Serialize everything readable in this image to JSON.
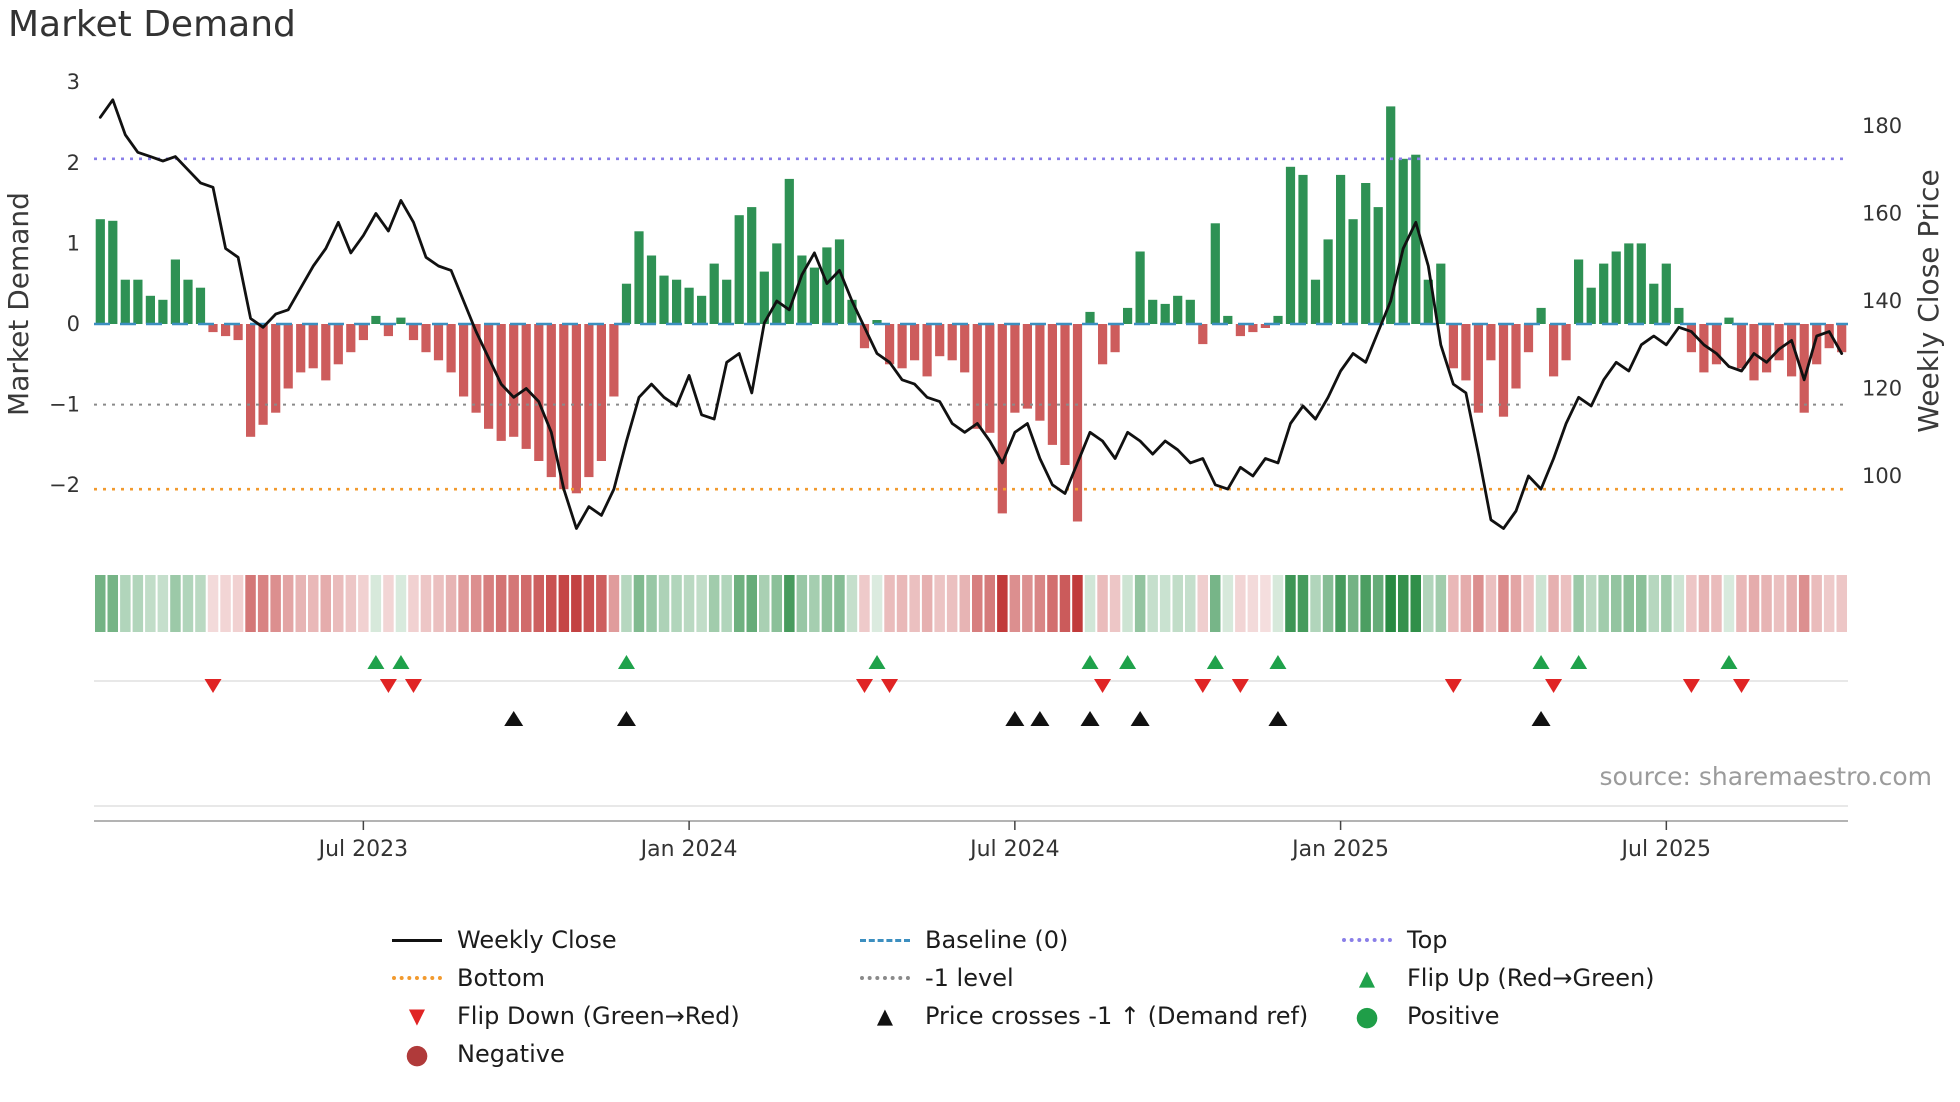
{
  "title": "Market Demand",
  "source": "source: sharemaestro.com",
  "axes": {
    "left_label": "Market Demand",
    "right_label": "Weekly Close Price",
    "left_ticks": [
      {
        "label": "3",
        "value": 3
      },
      {
        "label": "2",
        "value": 2
      },
      {
        "label": "1",
        "value": 1
      },
      {
        "label": "0",
        "value": 0
      },
      {
        "label": "−1",
        "value": -1
      },
      {
        "label": "−2",
        "value": -2
      }
    ],
    "right_ticks": [
      {
        "label": "180",
        "value": 180
      },
      {
        "label": "160",
        "value": 160
      },
      {
        "label": "140",
        "value": 140
      },
      {
        "label": "120",
        "value": 120
      },
      {
        "label": "100",
        "value": 100
      }
    ]
  },
  "colors": {
    "positive_bar": "#2e9154",
    "negative_bar": "#cd5c5c",
    "price_line": "#111111",
    "baseline": "#3c8fc0",
    "top_line": "#8a7fe8",
    "bottom_line": "#f29a2e",
    "minus1_line": "#8a8a8a",
    "flip_up": "#1fa24b",
    "flip_down": "#e02424",
    "price_cross": "#111111",
    "positive_dot": "#1f9e48",
    "negative_dot": "#b03a3a",
    "heat_green": "40,138,66",
    "heat_red": "193,58,58",
    "tick_text": "#333333",
    "grid_line": "#d9d9d9",
    "axis_line": "#9a9a9a"
  },
  "legend": [
    {
      "id": "weekly-close",
      "label": "Weekly Close",
      "marker": "line",
      "style": "solid",
      "color": "#111111"
    },
    {
      "id": "baseline",
      "label": "Baseline (0)",
      "marker": "line",
      "style": "dashed",
      "color": "#3c8fc0"
    },
    {
      "id": "top",
      "label": "Top",
      "marker": "line",
      "style": "dotted",
      "color": "#8a7fe8"
    },
    {
      "id": "bottom",
      "label": "Bottom",
      "marker": "line",
      "style": "dotted",
      "color": "#f29a2e"
    },
    {
      "id": "minus-1-level",
      "label": "-1 level",
      "marker": "line",
      "style": "dotted",
      "color": "#8a8a8a"
    },
    {
      "id": "flip-up",
      "label": "Flip Up (Red→Green)",
      "marker": "triangle-up",
      "color": "#1fa24b"
    },
    {
      "id": "flip-down",
      "label": "Flip Down (Green→Red)",
      "marker": "triangle-down",
      "color": "#e02424"
    },
    {
      "id": "price-cross",
      "label": "Price crosses -1 ↑ (Demand ref)",
      "marker": "triangle-up",
      "color": "#111111"
    },
    {
      "id": "positive",
      "label": "Positive",
      "marker": "circle",
      "color": "#1f9e48"
    },
    {
      "id": "negative",
      "label": "Negative",
      "marker": "circle",
      "color": "#b03a3a"
    }
  ],
  "chart_data": {
    "type": "bar",
    "title": "Market Demand",
    "xlabel": "",
    "ylabel_left": "Market Demand",
    "ylabel_right": "Weekly Close Price",
    "n_points": 140,
    "x_unit": "week",
    "x_tick_labels": [
      "Jul 2023",
      "Jan 2024",
      "Jul 2024",
      "Jan 2025",
      "Jul 2025"
    ],
    "x_tick_indices": [
      21,
      47,
      73,
      99,
      125
    ],
    "left_ylim": [
      -2.7,
      3.2
    ],
    "right_ylim": [
      86,
      190
    ],
    "grid": false,
    "legend_position": "bottom",
    "reference_lines": {
      "top": 2.05,
      "baseline": 0,
      "minus1": -1,
      "bottom": -2.05
    },
    "series": [
      {
        "name": "Market Demand",
        "type": "bar",
        "axis": "left",
        "values": [
          1.3,
          1.28,
          0.55,
          0.55,
          0.35,
          0.3,
          0.8,
          0.55,
          0.45,
          -0.1,
          -0.15,
          -0.2,
          -1.4,
          -1.25,
          -1.1,
          -0.8,
          -0.6,
          -0.55,
          -0.7,
          -0.5,
          -0.35,
          -0.2,
          0.1,
          -0.15,
          0.08,
          -0.2,
          -0.35,
          -0.45,
          -0.6,
          -0.9,
          -1.1,
          -1.3,
          -1.45,
          -1.4,
          -1.55,
          -1.7,
          -1.9,
          -2.05,
          -2.1,
          -1.9,
          -1.7,
          -0.9,
          0.5,
          1.15,
          0.85,
          0.6,
          0.55,
          0.45,
          0.35,
          0.75,
          0.55,
          1.35,
          1.45,
          0.65,
          1.0,
          1.8,
          0.85,
          0.7,
          0.95,
          1.05,
          0.3,
          -0.3,
          0.05,
          -0.5,
          -0.55,
          -0.45,
          -0.65,
          -0.4,
          -0.45,
          -0.6,
          -1.3,
          -1.35,
          -2.35,
          -1.1,
          -1.05,
          -1.2,
          -1.5,
          -1.75,
          -2.45,
          0.15,
          -0.5,
          -0.35,
          0.2,
          0.9,
          0.3,
          0.25,
          0.35,
          0.3,
          -0.25,
          1.25,
          0.1,
          -0.15,
          -0.1,
          -0.05,
          0.1,
          1.95,
          1.85,
          0.55,
          1.05,
          1.85,
          1.3,
          1.75,
          1.45,
          2.7,
          2.05,
          2.1,
          0.55,
          0.75,
          -0.55,
          -0.7,
          -1.1,
          -0.45,
          -1.15,
          -0.8,
          -0.35,
          0.2,
          -0.65,
          -0.45,
          0.8,
          0.45,
          0.75,
          0.9,
          1.0,
          1.0,
          0.5,
          0.75,
          0.2,
          -0.35,
          -0.6,
          -0.5,
          0.08,
          -0.55,
          -0.7,
          -0.6,
          -0.45,
          -0.65,
          -1.1,
          -0.5,
          -0.3,
          -0.35
        ]
      },
      {
        "name": "Weekly Close",
        "type": "line",
        "axis": "right",
        "values": [
          182,
          186,
          178,
          174,
          173,
          172,
          173,
          170,
          167,
          166,
          152,
          150,
          136,
          134,
          137,
          138,
          143,
          148,
          152,
          158,
          151,
          155,
          160,
          156,
          163,
          158,
          150,
          148,
          147,
          140,
          133,
          127,
          121,
          118,
          120,
          117,
          110,
          97,
          88,
          93,
          91,
          97,
          108,
          118,
          121,
          118,
          116,
          123,
          114,
          113,
          126,
          128,
          119,
          135,
          140,
          138,
          146,
          151,
          144,
          147,
          140,
          134,
          128,
          126,
          122,
          121,
          118,
          117,
          112,
          110,
          112,
          108,
          103,
          110,
          112,
          104,
          98,
          96,
          103,
          110,
          108,
          104,
          110,
          108,
          105,
          108,
          106,
          103,
          104,
          98,
          97,
          102,
          100,
          104,
          103,
          112,
          116,
          113,
          118,
          124,
          128,
          126,
          133,
          140,
          152,
          158,
          148,
          130,
          121,
          119,
          105,
          90,
          88,
          92,
          100,
          97,
          104,
          112,
          118,
          116,
          122,
          126,
          124,
          130,
          132,
          130,
          134,
          133,
          130,
          128,
          125,
          124,
          128,
          126,
          129,
          131,
          122,
          132,
          133,
          128
        ]
      }
    ],
    "markers": {
      "flip_up_indices": [
        22,
        24,
        42,
        62,
        79,
        82,
        89,
        94,
        115,
        118,
        130
      ],
      "flip_down_indices": [
        9,
        23,
        25,
        61,
        63,
        80,
        88,
        91,
        108,
        116,
        127,
        131
      ],
      "price_cross_indices": [
        33,
        42,
        73,
        75,
        79,
        83,
        94,
        115
      ]
    },
    "heatmap": {
      "description": "weekly strip colored by Market Demand sign and magnitude",
      "positive_color": "green",
      "negative_color": "red"
    }
  }
}
